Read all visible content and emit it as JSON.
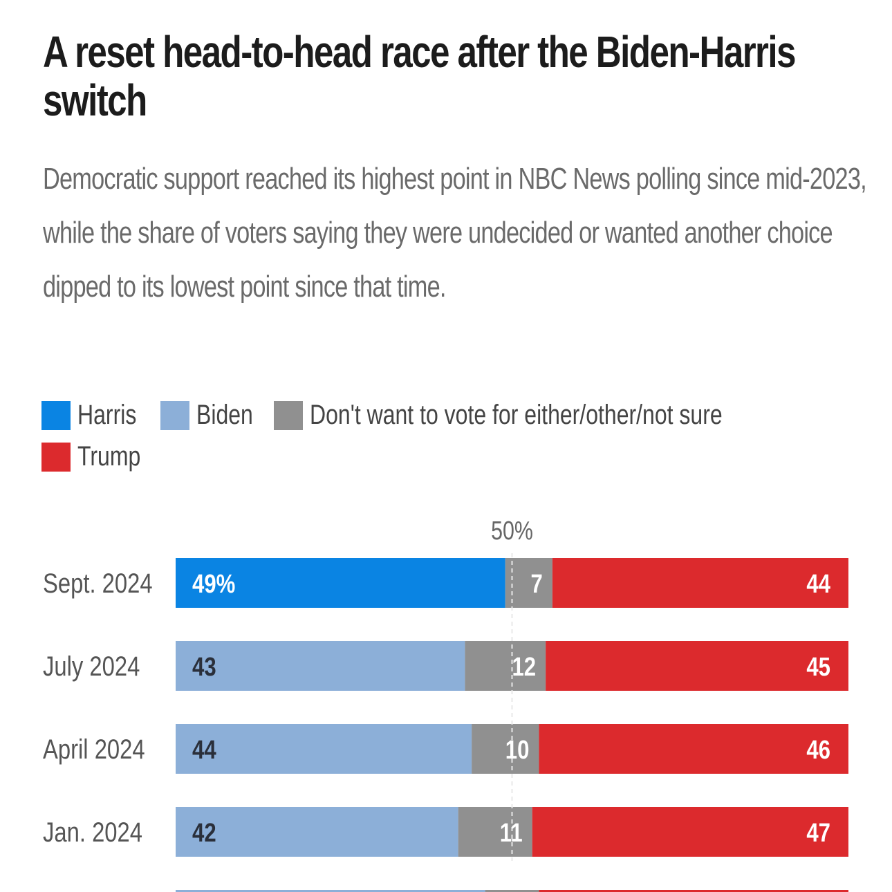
{
  "header": {
    "title": "A reset head-to-head race after the Biden-Harris switch",
    "subtitle": "Democratic support reached its highest point in NBC News polling since mid-2023, while the share of voters saying they were undecided or wanted another choice dipped to its lowest point since that time."
  },
  "legend": [
    {
      "label": "Harris",
      "color": "#0a84e3"
    },
    {
      "label": "Biden",
      "color": "#8cafd8"
    },
    {
      "label": "Don't want to vote for either/other/not sure",
      "color": "#909090"
    },
    {
      "label": "Trump",
      "color": "#dc2a2d"
    }
  ],
  "chart_data": {
    "type": "bar",
    "orientation": "horizontal",
    "stacked": true,
    "reference_line_label": "50%",
    "reference_line_value": 50,
    "categories": [
      "Sept. 2024",
      "July 2024",
      "April 2024",
      "Jan. 2024"
    ],
    "series": [
      {
        "name": "Harris/Biden",
        "values": [
          49,
          43,
          44,
          42
        ],
        "labels": [
          "49%",
          "43",
          "44",
          "42"
        ],
        "colors": [
          "#0a84e3",
          "#8cafd8",
          "#8cafd8",
          "#8cafd8"
        ]
      },
      {
        "name": "Don't want to vote for either/other/not sure",
        "values": [
          7,
          12,
          10,
          11
        ],
        "labels": [
          "7",
          "12",
          "10",
          "11"
        ],
        "color": "#909090"
      },
      {
        "name": "Trump",
        "values": [
          44,
          45,
          46,
          47
        ],
        "labels": [
          "44",
          "45",
          "46",
          "47"
        ],
        "color": "#dc2a2d"
      }
    ],
    "xlim": [
      0,
      100
    ]
  }
}
